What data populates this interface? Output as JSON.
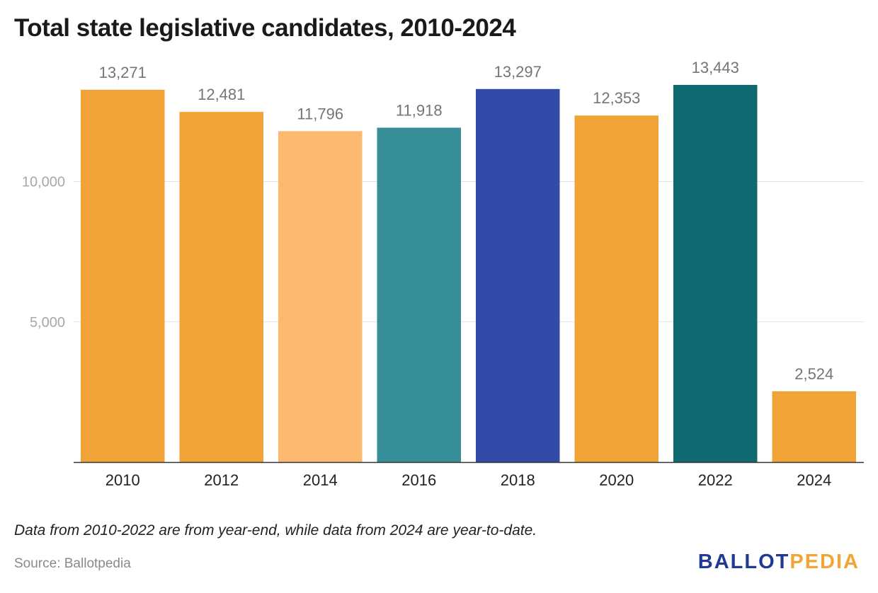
{
  "title": "Total state legislative candidates, 2010-2024",
  "note": "Data from 2010-2022 are from year-end, while data from 2024 are year-to-date.",
  "source": "Source: Ballotpedia",
  "logo": {
    "part1": "BALLOT",
    "part2": "PEDIA"
  },
  "chart_data": {
    "type": "bar",
    "title": "Total state legislative candidates, 2010-2024",
    "xlabel": "",
    "ylabel": "",
    "categories": [
      "2010",
      "2012",
      "2014",
      "2016",
      "2018",
      "2020",
      "2022",
      "2024"
    ],
    "values": [
      13271,
      12481,
      11796,
      11918,
      13297,
      12353,
      13443,
      2524
    ],
    "value_labels": [
      "13,271",
      "12,481",
      "11,796",
      "11,918",
      "13,297",
      "12,353",
      "13,443",
      "2,524"
    ],
    "colors": [
      "#f0a336",
      "#f0a336",
      "#feb970",
      "#368e99",
      "#344aa9",
      "#f0a336",
      "#0e6970",
      "#f0a336"
    ],
    "ylim": [
      0,
      13443
    ],
    "yticks": [
      5000,
      10000
    ],
    "ytick_labels": [
      "5,000",
      "10,000"
    ],
    "grid": true,
    "legend": "none"
  }
}
